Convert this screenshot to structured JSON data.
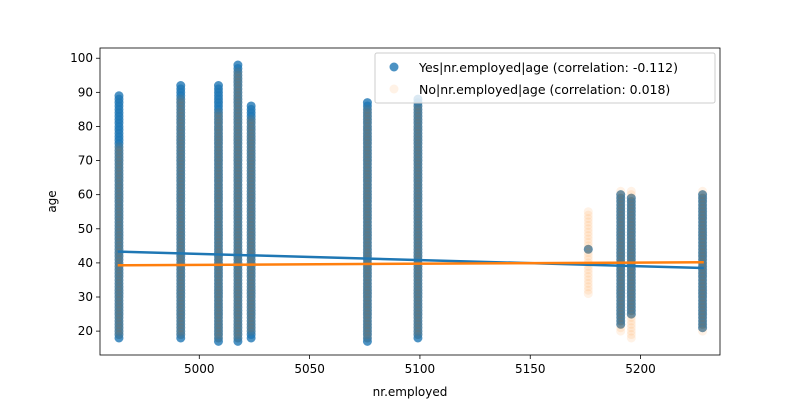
{
  "chart_data": {
    "type": "scatter",
    "xlabel": "nr.employed",
    "ylabel": "age",
    "xlim": [
      4955,
      5236
    ],
    "ylim": [
      13,
      103
    ],
    "x_ticks": [
      5000,
      5050,
      5100,
      5150,
      5200
    ],
    "y_ticks": [
      20,
      30,
      40,
      50,
      60,
      70,
      80,
      90,
      100
    ],
    "grid": false,
    "legend_position": "top-right",
    "series": [
      {
        "name": "Yes|nr.employed|age (correlation: -0.112)",
        "color": "#1f77b4",
        "marker_alpha": 0.8,
        "columns": [
          {
            "x": 4963.6,
            "ymin": 18,
            "ymax": 89
          },
          {
            "x": 4991.6,
            "ymin": 18,
            "ymax": 92
          },
          {
            "x": 5008.7,
            "ymin": 17,
            "ymax": 92
          },
          {
            "x": 5017.5,
            "ymin": 17,
            "ymax": 98
          },
          {
            "x": 5023.5,
            "ymin": 18,
            "ymax": 86
          },
          {
            "x": 5076.2,
            "ymin": 17,
            "ymax": 87
          },
          {
            "x": 5099.1,
            "ymin": 18,
            "ymax": 88
          },
          {
            "x": 5191.0,
            "ymin": 22,
            "ymax": 60
          },
          {
            "x": 5195.8,
            "ymin": 25,
            "ymax": 59
          },
          {
            "x": 5228.1,
            "ymin": 21,
            "ymax": 60
          }
        ],
        "extra_points": [
          {
            "x": 5176.3,
            "y": 44
          }
        ],
        "regression": {
          "x": [
            4963.6,
            5228.1
          ],
          "y": [
            43.3,
            38.5
          ]
        }
      },
      {
        "name": "No|nr.employed|age (correlation: 0.018)",
        "color": "#ff7f0e",
        "marker_alpha": 0.1,
        "columns": [
          {
            "x": 4963.6,
            "ymin": 19,
            "ymax": 74
          },
          {
            "x": 4991.6,
            "ymin": 19,
            "ymax": 88
          },
          {
            "x": 5008.7,
            "ymin": 18,
            "ymax": 84
          },
          {
            "x": 5017.5,
            "ymin": 18,
            "ymax": 96
          },
          {
            "x": 5023.5,
            "ymin": 20,
            "ymax": 82
          },
          {
            "x": 5076.2,
            "ymin": 18,
            "ymax": 85
          },
          {
            "x": 5099.1,
            "ymin": 19,
            "ymax": 86
          },
          {
            "x": 5176.3,
            "ymin": 31,
            "ymax": 55
          },
          {
            "x": 5191.0,
            "ymin": 20,
            "ymax": 61
          },
          {
            "x": 5195.8,
            "ymin": 18,
            "ymax": 61
          },
          {
            "x": 5228.1,
            "ymin": 20,
            "ymax": 61
          }
        ],
        "extra_points": [],
        "regression": {
          "x": [
            4963.6,
            5228.1
          ],
          "y": [
            39.3,
            40.2
          ]
        }
      }
    ]
  }
}
